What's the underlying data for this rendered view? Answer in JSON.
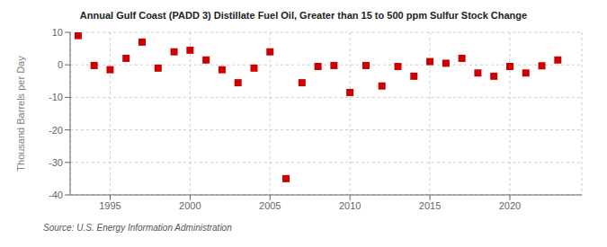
{
  "chart_data": {
    "type": "scatter",
    "title": "Annual Gulf Coast (PADD 3) Distillate Fuel Oil, Greater than 15 to 500 ppm Sulfur Stock Change",
    "ylabel": "Thousand Barrels per Day",
    "source": "Source: U.S. Energy Information Administration",
    "x": [
      1993,
      1994,
      1995,
      1996,
      1997,
      1998,
      1999,
      2000,
      2001,
      2002,
      2003,
      2004,
      2005,
      2006,
      2007,
      2008,
      2009,
      2010,
      2011,
      2012,
      2013,
      2014,
      2015,
      2016,
      2017,
      2018,
      2019,
      2020,
      2021,
      2022,
      2023
    ],
    "values": [
      9.0,
      -0.2,
      -1.5,
      2.0,
      7.0,
      -1.0,
      4.0,
      4.5,
      1.5,
      -1.5,
      -5.5,
      -1.0,
      4.0,
      -35.0,
      -5.5,
      -0.5,
      -0.2,
      -8.5,
      -0.2,
      -6.5,
      -0.5,
      -3.5,
      1.0,
      0.5,
      2.0,
      -2.5,
      -3.5,
      -0.5,
      -2.5,
      -0.3,
      1.5
    ],
    "color": "#cc0000",
    "marker": "square",
    "xlim": [
      1992.5,
      2024.5
    ],
    "xticks": [
      1995,
      2000,
      2005,
      2010,
      2015,
      2020
    ],
    "ylim": [
      -40,
      10
    ],
    "yticks": [
      -40,
      -30,
      -20,
      -10,
      0,
      10
    ],
    "grid": true
  }
}
